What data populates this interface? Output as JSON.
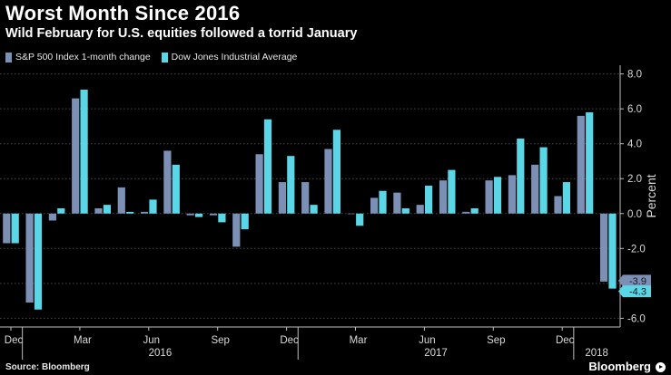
{
  "header": {
    "title": "Worst Month Since 2016",
    "subtitle": "Wild February for U.S. equities followed a torrid January"
  },
  "footer": {
    "source": "Source: Bloomberg",
    "brand": "Bloomberg",
    "play_icon": "play-icon"
  },
  "colors": {
    "background": "#000000",
    "sp500": "#7c8fb5",
    "dow": "#5ad6e6",
    "grid": "#4a4a4a",
    "axis_text": "#d9d9d9"
  },
  "chart_data": {
    "type": "bar",
    "x": [
      "2015-12",
      "2016-01",
      "2016-02",
      "2016-03",
      "2016-04",
      "2016-05",
      "2016-06",
      "2016-07",
      "2016-08",
      "2016-09",
      "2016-10",
      "2016-11",
      "2016-12",
      "2017-01",
      "2017-02",
      "2017-03",
      "2017-04",
      "2017-05",
      "2017-06",
      "2017-07",
      "2017-08",
      "2017-09",
      "2017-10",
      "2017-11",
      "2017-12",
      "2018-01",
      "2018-02"
    ],
    "series": [
      {
        "name": "S&P 500 Index 1-month change",
        "color": "#7c8fb5",
        "values": [
          -1.7,
          -5.1,
          -0.4,
          6.6,
          0.3,
          1.5,
          0.1,
          3.6,
          -0.1,
          -0.1,
          -1.9,
          3.4,
          1.8,
          1.8,
          3.7,
          0.0,
          0.9,
          1.2,
          0.5,
          1.9,
          0.1,
          1.9,
          2.2,
          2.8,
          1.0,
          5.6,
          -3.9
        ]
      },
      {
        "name": "Dow Jones Industrial Average",
        "color": "#5ad6e6",
        "values": [
          -1.7,
          -5.5,
          0.3,
          7.1,
          0.5,
          0.1,
          0.8,
          2.8,
          -0.2,
          -0.5,
          -0.9,
          5.4,
          3.3,
          0.5,
          4.8,
          -0.7,
          1.3,
          0.3,
          1.6,
          2.5,
          0.3,
          2.1,
          4.3,
          3.8,
          1.8,
          5.8,
          -4.3
        ]
      }
    ],
    "xlabel": "",
    "ylabel": "Percent",
    "ylim": [
      -6.5,
      8.5
    ],
    "yticks": [
      -6.0,
      -4.0,
      -2.0,
      0.0,
      2.0,
      4.0,
      6.0,
      8.0
    ],
    "ytick_labels": [
      "-6.0",
      "-4.0",
      "-2.0",
      "0.0",
      "2.0",
      "4.0",
      "6.0",
      "8.0"
    ],
    "month_ticks": [
      {
        "index": 0,
        "label": "Dec"
      },
      {
        "index": 3,
        "label": "Mar"
      },
      {
        "index": 6,
        "label": "Jun"
      },
      {
        "index": 9,
        "label": "Sep"
      },
      {
        "index": 12,
        "label": "Dec"
      },
      {
        "index": 15,
        "label": "Mar"
      },
      {
        "index": 18,
        "label": "Jun"
      },
      {
        "index": 21,
        "label": "Sep"
      },
      {
        "index": 24,
        "label": "Dec"
      }
    ],
    "year_labels": [
      {
        "center_index": 6.5,
        "label": "2016"
      },
      {
        "center_index": 18.5,
        "label": "2017"
      },
      {
        "center_index": 25.5,
        "label": "2018"
      }
    ],
    "year_dividers": [
      1,
      13,
      25
    ],
    "callouts": [
      {
        "series": 0,
        "value": -3.9,
        "label": "-3.9"
      },
      {
        "series": 1,
        "value": -4.3,
        "label": "-4.3"
      }
    ],
    "grid": true,
    "legend_position": "top-left"
  }
}
